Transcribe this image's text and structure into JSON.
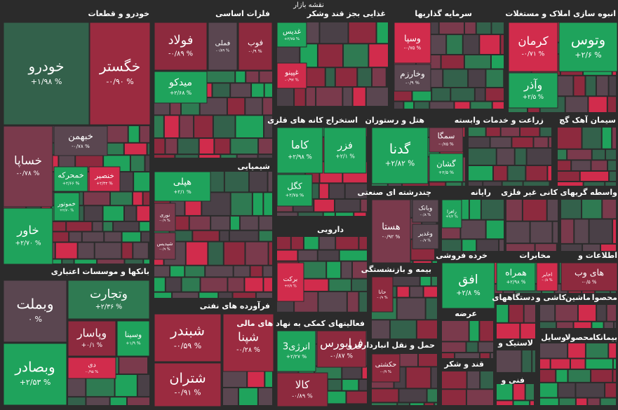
{
  "title": "نقشه بازار",
  "sectors": [
    {
      "title": "خودرو و قطعات",
      "tiles": [
        {
          "name": "خودرو",
          "change": "+۱/۹۸ %",
          "color": "#33614b"
        },
        {
          "name": "خگستر",
          "change": "-۰/۹۰ %",
          "color": "#9b2b40"
        },
        {
          "name": "خساپا",
          "change": "-۰/۷۸ %",
          "color": "#7a3a4c"
        },
        {
          "name": "خبهمن",
          "change": "-۰/۷۸ %",
          "color": "#5a4650"
        },
        {
          "name": "خمحرکه",
          "change": "+۲/۶۶ %",
          "color": "#1fa35c"
        },
        {
          "name": "خنصیر",
          "change": "+۲/۳۴ %",
          "color": "#d12c4c"
        },
        {
          "name": "خموتور",
          "change": "+۲/۷۰ %",
          "color": "#1fa35c"
        },
        {
          "name": "خاور",
          "change": "+۲/۷۰ %",
          "color": "#1fa35c"
        }
      ]
    },
    {
      "title": "بانکها و موسسات اعتباری",
      "tiles": [
        {
          "name": "وبملت",
          "change": "۰ %",
          "color": "#5a4650"
        },
        {
          "name": "وتجارت",
          "change": "+۲/۳۶ %",
          "color": "#2f7a52"
        },
        {
          "name": "وپاسار",
          "change": "+۰/۱ %",
          "color": "#8d2a3e"
        },
        {
          "name": "وسینا",
          "change": "+۱/۹ %",
          "color": "#1fa35c"
        },
        {
          "name": "وبصادر",
          "change": "+۲/۵۳ %",
          "color": "#1fa35c"
        },
        {
          "name": "دی",
          "change": "-۰/۹۵ %",
          "color": "#d12c4c"
        }
      ]
    },
    {
      "title": "فلزات اساسی",
      "tiles": [
        {
          "name": "فولاد",
          "change": "-۰/۸۹ %",
          "color": "#8d2a3e"
        },
        {
          "name": "فملی",
          "change": "-۰/۸۹ %",
          "color": "#5a4650"
        },
        {
          "name": "فوب",
          "change": "-۰/۹ %",
          "color": "#8d2a3e"
        },
        {
          "name": "میدکو",
          "change": "+۲/۶۸ %",
          "color": "#1fa35c"
        }
      ]
    },
    {
      "title": "شیمیایی",
      "tiles": [
        {
          "name": "هپلی",
          "change": "+۲/۱ %",
          "color": "#1fa35c"
        },
        {
          "name": "نوری",
          "change": "-۰/۹ %",
          "color": "#7a3a4c"
        },
        {
          "name": "شپدیس",
          "change": "-۰/۹ %",
          "color": "#7a3a4c"
        }
      ]
    },
    {
      "title": "فرآورده های نفتی",
      "tiles": [
        {
          "name": "شبندر",
          "change": "-۰/۵۹ %",
          "color": "#9b2b40"
        },
        {
          "name": "شپنا",
          "change": "-۰/۲۸ %",
          "color": "#9b2b40"
        },
        {
          "name": "شتران",
          "change": "-۰/۹۱ %",
          "color": "#9b2b40"
        }
      ]
    },
    {
      "title": "غذایی بجز قند وشکر",
      "tiles": [
        {
          "name": "غدیس",
          "change": "+۲/۷۵ %",
          "color": "#1fa35c"
        },
        {
          "name": "غپینو",
          "change": "-۰/۹۷ %",
          "color": "#d12c4c"
        }
      ]
    },
    {
      "title": "استخراج کانه های فلزی",
      "tiles": [
        {
          "name": "کاما",
          "change": "+۲/۹۸ %",
          "color": "#1fa35c"
        },
        {
          "name": "فزر",
          "change": "+۲/۱ %",
          "color": "#1fa35c"
        },
        {
          "name": "کگل",
          "change": "+۲/۷۵ %",
          "color": "#1fa35c"
        }
      ]
    },
    {
      "title": "دارویی",
      "tiles": [
        {
          "name": "برکت",
          "change": "+۲/۷ %",
          "color": "#d12c4c"
        }
      ]
    },
    {
      "title": "فعالیتهای کمکی به نهاد های مالی",
      "tiles": [
        {
          "name": "انرژی3",
          "change": "+۲/۲۷ %",
          "color": "#1fa35c"
        },
        {
          "name": "فرابورس",
          "change": "-۰/۸۷ %",
          "color": "#8d2a3e"
        },
        {
          "name": "کالا",
          "change": "-۰/۸۹ %",
          "color": "#8d2a3e"
        }
      ]
    },
    {
      "title": "سرمایه گذاریها",
      "tiles": [
        {
          "name": "وسپا",
          "change": "-۰/۷۵ %",
          "color": "#d12c4c"
        },
        {
          "name": "وخارزم",
          "change": "-۰/۹ %",
          "color": "#5a4650"
        }
      ]
    },
    {
      "title": "هتل و رستوران",
      "tiles": [
        {
          "name": "گدنا",
          "change": "+۲/۸۲ %",
          "color": "#1fa35c"
        },
        {
          "name": "سمگا",
          "change": "-۰/۷۵ %",
          "color": "#7a3a4c"
        },
        {
          "name": "گشان",
          "change": "+۲/۵ %",
          "color": "#1fa35c"
        }
      ]
    },
    {
      "title": "زراعت و خدمات وابسته",
      "tiles": []
    },
    {
      "title": "سیمان آهک گچ",
      "tiles": []
    },
    {
      "title": "چندرشته ای صنعتی",
      "tiles": [
        {
          "name": "هستا",
          "change": "-۰/۹۲ %",
          "color": "#7a3a4c"
        },
        {
          "name": "وبانک",
          "change": "-۰/۸ %",
          "color": "#5a4650"
        },
        {
          "name": "وغدیر",
          "change": "-۰/۷ %",
          "color": "#5a4650"
        }
      ]
    },
    {
      "title": "بیمه و بازنشستگی",
      "tiles": [
        {
          "name": "حانا",
          "change": "-۰/۹ %",
          "color": "#8d2a3e"
        }
      ]
    },
    {
      "title": "حمل و نقل انبارداری و",
      "tiles": [
        {
          "name": "حکشتی",
          "change": "-۰/۹ %",
          "color": "#8d2a3e"
        }
      ]
    },
    {
      "title": "انبوه سازی املاک و مستغلات",
      "tiles": [
        {
          "name": "کرمان",
          "change": "-۰/۷۱ %",
          "color": "#d12c4c"
        },
        {
          "name": "وتوس",
          "change": "+۲/۶ %",
          "color": "#1fa35c"
        },
        {
          "name": "وآذر",
          "change": "+۲/۵ %",
          "color": "#1fa35c"
        }
      ]
    },
    {
      "title": "رایانه",
      "tiles": [
        {
          "name": "رافزا",
          "change": "+۲/۲ %",
          "color": "#1fa35c"
        }
      ]
    },
    {
      "title": "کانی غیر فلزی",
      "tiles": []
    },
    {
      "title": "واسطه گریهای",
      "tiles": []
    },
    {
      "title": "خرده فروشی",
      "tiles": [
        {
          "name": "افق",
          "change": "+۲/۸ %",
          "color": "#1fa35c"
        }
      ]
    },
    {
      "title": "مخابرات",
      "tiles": [
        {
          "name": "همراه",
          "change": "+۲/۹۸ %",
          "color": "#1fa35c"
        },
        {
          "name": "اخابر",
          "change": "-۰/۸ %",
          "color": "#d12c4c"
        }
      ]
    },
    {
      "title": "اطلاعات و",
      "tiles": [
        {
          "name": "های وب",
          "change": "-۰/۵ %",
          "color": "#8d2a3e"
        }
      ]
    },
    {
      "title": "عرضه",
      "tiles": []
    },
    {
      "title": "دستگاههای",
      "tiles": []
    },
    {
      "title": "کاشی و",
      "tiles": []
    },
    {
      "title": "ماشین",
      "tiles": []
    },
    {
      "title": "محصوا",
      "tiles": []
    },
    {
      "title": "لاستیک و",
      "tiles": []
    },
    {
      "title": "وسایل",
      "tiles": []
    },
    {
      "title": "محصولا",
      "tiles": []
    },
    {
      "title": "بیمانکا",
      "tiles": []
    },
    {
      "title": "قند و شکر",
      "tiles": []
    },
    {
      "title": "فنی و",
      "tiles": []
    }
  ]
}
